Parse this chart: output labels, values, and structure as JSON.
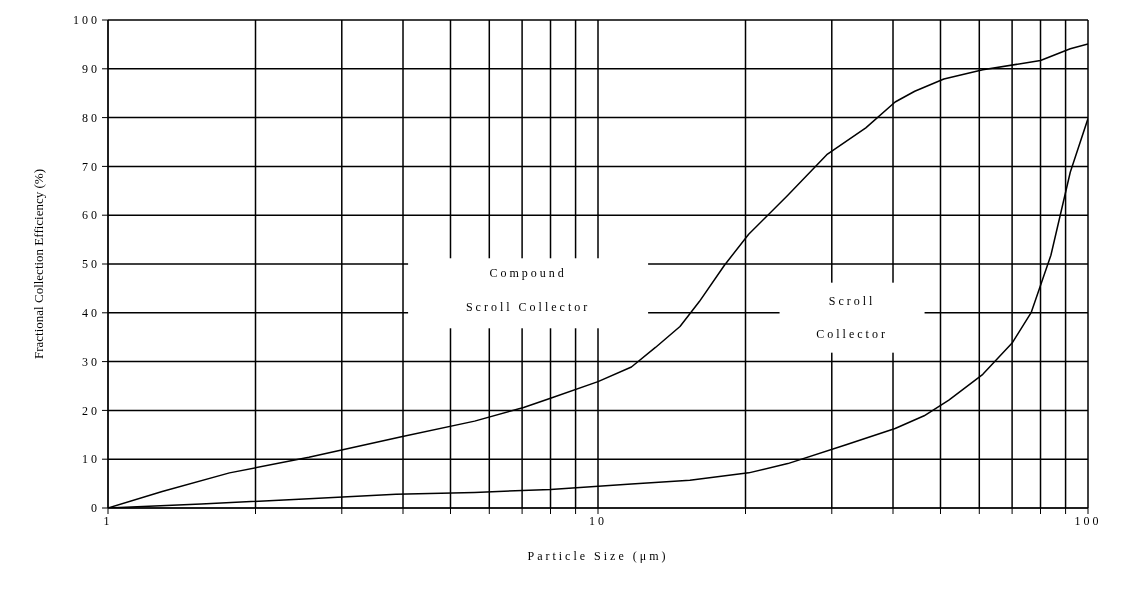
{
  "chart_data": {
    "type": "line",
    "xlabel": "Particle Size (μm)",
    "ylabel": "Fractional Collection Efficiency (%)",
    "log": "x",
    "xlim": [
      1,
      100
    ],
    "ylim": [
      0,
      100
    ],
    "xticks": [
      1,
      {
        "value": 2,
        "label": null
      },
      {
        "value": 3,
        "label": null
      },
      {
        "value": 4,
        "label": null
      },
      {
        "value": 5,
        "label": null
      },
      {
        "value": 6,
        "label": null
      },
      {
        "value": 7,
        "label": null
      },
      {
        "value": 8,
        "label": null
      },
      {
        "value": 9,
        "label": null
      },
      10,
      {
        "value": 20,
        "label": null
      },
      {
        "value": 30,
        "label": null
      },
      {
        "value": 40,
        "label": null
      },
      {
        "value": 50,
        "label": null
      },
      {
        "value": 60,
        "label": null
      },
      {
        "value": 70,
        "label": null
      },
      {
        "value": 80,
        "label": null
      },
      {
        "value": 90,
        "label": null
      },
      100
    ],
    "yticks": [
      0,
      10,
      20,
      30,
      40,
      50,
      60,
      70,
      80,
      90,
      100
    ],
    "grid": true,
    "legend": false,
    "marker": "none",
    "line_style": "solid",
    "series": [
      {
        "color": "#000000",
        "x": [
          1,
          1.29,
          1.77,
          2.57,
          3.97,
          5.6,
          7.05,
          8,
          10,
          11.7,
          13.1,
          14.7,
          16.1,
          18.1,
          20.3,
          24.4,
          29.3,
          35.2,
          40.4,
          44.3,
          50.8,
          61,
          80,
          92,
          100
        ],
        "values": [
          0,
          3.4,
          7.2,
          10.4,
          14.6,
          17.8,
          20.6,
          22.5,
          25.9,
          28.9,
          32.9,
          37.2,
          42.3,
          49.7,
          56.1,
          64.1,
          72.4,
          77.9,
          83.2,
          85.4,
          87.9,
          89.8,
          91.7,
          94.1,
          95.1
        ]
      },
      {
        "color": "#000000",
        "x": [
          1,
          1.55,
          2.57,
          3.87,
          5.6,
          8,
          11.7,
          15.4,
          20.3,
          24.4,
          32.2,
          40.4,
          46.3,
          52,
          61,
          70,
          76.6,
          84,
          92,
          100
        ],
        "values": [
          0,
          0.8,
          1.9,
          2.8,
          3.2,
          3.8,
          4.9,
          5.7,
          7.2,
          9.1,
          13,
          16.3,
          18.9,
          22.1,
          27.4,
          33.8,
          40.1,
          51.8,
          68.8,
          79.8
        ]
      }
    ],
    "annotations": [
      "Compound",
      "Scroll Collector",
      "Scroll",
      "Collector"
    ]
  }
}
